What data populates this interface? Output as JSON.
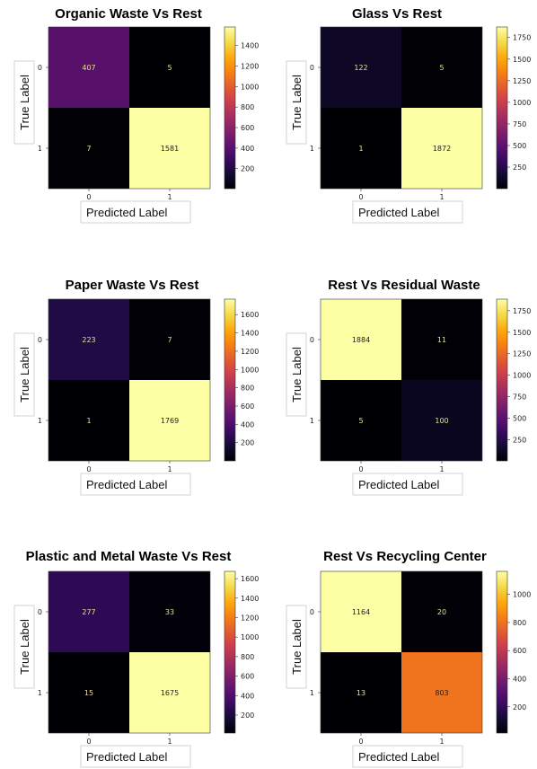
{
  "chart_data": [
    {
      "type": "heatmap",
      "title": "Organic Waste Vs Rest",
      "xlabel": "Predicted Label",
      "ylabel": "True Label",
      "x_ticks": [
        "0",
        "1"
      ],
      "y_ticks": [
        "0",
        "1"
      ],
      "matrix": [
        [
          407,
          5
        ],
        [
          7,
          1581
        ]
      ],
      "colormap": "inferno",
      "colorbar_ticks": [
        200,
        400,
        600,
        800,
        1000,
        1200,
        1400
      ]
    },
    {
      "type": "heatmap",
      "title": "Glass Vs Rest",
      "xlabel": "Predicted Label",
      "ylabel": "True Label",
      "x_ticks": [
        "0",
        "1"
      ],
      "y_ticks": [
        "0",
        "1"
      ],
      "matrix": [
        [
          122,
          5
        ],
        [
          1,
          1872
        ]
      ],
      "colormap": "inferno",
      "colorbar_ticks": [
        250,
        500,
        750,
        1000,
        1250,
        1500,
        1750
      ]
    },
    {
      "type": "heatmap",
      "title": "Paper Waste Vs Rest",
      "xlabel": "Predicted Label",
      "ylabel": "True Label",
      "x_ticks": [
        "0",
        "1"
      ],
      "y_ticks": [
        "0",
        "1"
      ],
      "matrix": [
        [
          223,
          7
        ],
        [
          1,
          1769
        ]
      ],
      "colormap": "inferno",
      "colorbar_ticks": [
        200,
        400,
        600,
        800,
        1000,
        1200,
        1400,
        1600
      ]
    },
    {
      "type": "heatmap",
      "title": "Rest Vs Residual Waste",
      "xlabel": "Predicted Label",
      "ylabel": "True Label",
      "x_ticks": [
        "0",
        "1"
      ],
      "y_ticks": [
        "0",
        "1"
      ],
      "matrix": [
        [
          1884,
          11
        ],
        [
          5,
          100
        ]
      ],
      "colormap": "inferno",
      "colorbar_ticks": [
        250,
        500,
        750,
        1000,
        1250,
        1500,
        1750
      ]
    },
    {
      "type": "heatmap",
      "title": "Plastic and Metal Waste Vs Rest",
      "xlabel": "Predicted Label",
      "ylabel": "True Label",
      "x_ticks": [
        "0",
        "1"
      ],
      "y_ticks": [
        "0",
        "1"
      ],
      "matrix": [
        [
          277,
          33
        ],
        [
          15,
          1675
        ]
      ],
      "colormap": "inferno",
      "colorbar_ticks": [
        200,
        400,
        600,
        800,
        1000,
        1200,
        1400,
        1600
      ]
    },
    {
      "type": "heatmap",
      "title": "Rest Vs Recycling Center",
      "xlabel": "Predicted Label",
      "ylabel": "True Label",
      "x_ticks": [
        "0",
        "1"
      ],
      "y_ticks": [
        "0",
        "1"
      ],
      "matrix": [
        [
          1164,
          20
        ],
        [
          13,
          803
        ]
      ],
      "colormap": "inferno",
      "colorbar_ticks": [
        200,
        400,
        600,
        800,
        1000
      ]
    }
  ]
}
